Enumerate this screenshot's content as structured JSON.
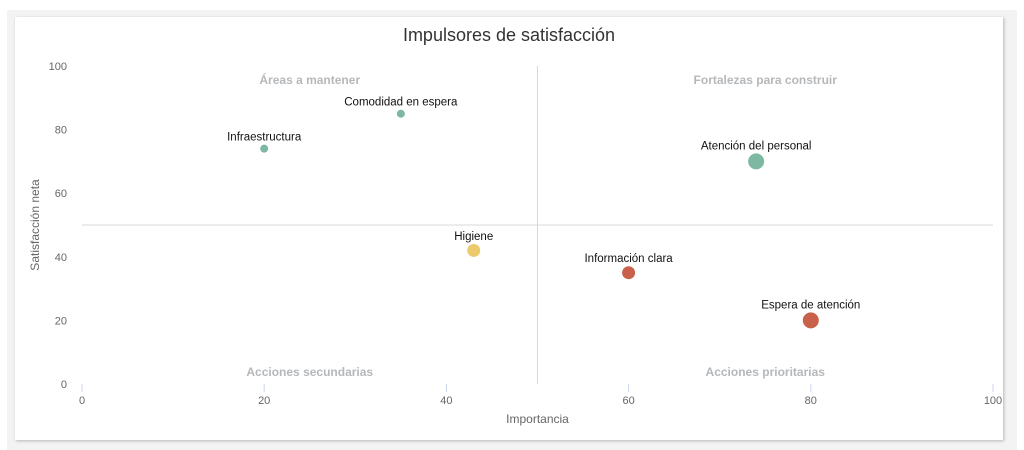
{
  "chart_data": {
    "type": "scatter",
    "title": "Impulsores de satisfacción",
    "xlabel": "Importancia",
    "ylabel": "Satisfacción neta",
    "xlim": [
      0,
      100
    ],
    "ylim": [
      0,
      100
    ],
    "x_ticks": [
      "0",
      "20",
      "40",
      "60",
      "80",
      "100"
    ],
    "y_ticks": [
      "0",
      "20",
      "40",
      "60",
      "80",
      "100"
    ],
    "grid": false,
    "quadrant_lines": {
      "x": 50,
      "y": 50
    },
    "quadrants": [
      {
        "label": "Áreas a mantener",
        "position": "top-left"
      },
      {
        "label": "Fortalezas para construir",
        "position": "top-right"
      },
      {
        "label": "Acciones secundarias",
        "position": "bottom-left"
      },
      {
        "label": "Acciones prioritarias",
        "position": "bottom-right"
      }
    ],
    "points": [
      {
        "label": "Comodidad en espera",
        "x": 35,
        "y": 85,
        "size": "small",
        "color": "#7db8a2"
      },
      {
        "label": "Infraestructura",
        "x": 20,
        "y": 74,
        "size": "small",
        "color": "#7db8a2"
      },
      {
        "label": "Atención del personal",
        "x": 74,
        "y": 70,
        "size": "large",
        "color": "#7db8a2"
      },
      {
        "label": "Higiene",
        "x": 43,
        "y": 42,
        "size": "medium",
        "color": "#ebcb6e"
      },
      {
        "label": "Información clara",
        "x": 60,
        "y": 35,
        "size": "medium",
        "color": "#c8604a"
      },
      {
        "label": "Espera de atención",
        "x": 80,
        "y": 20,
        "size": "large",
        "color": "#c8604a"
      }
    ]
  }
}
